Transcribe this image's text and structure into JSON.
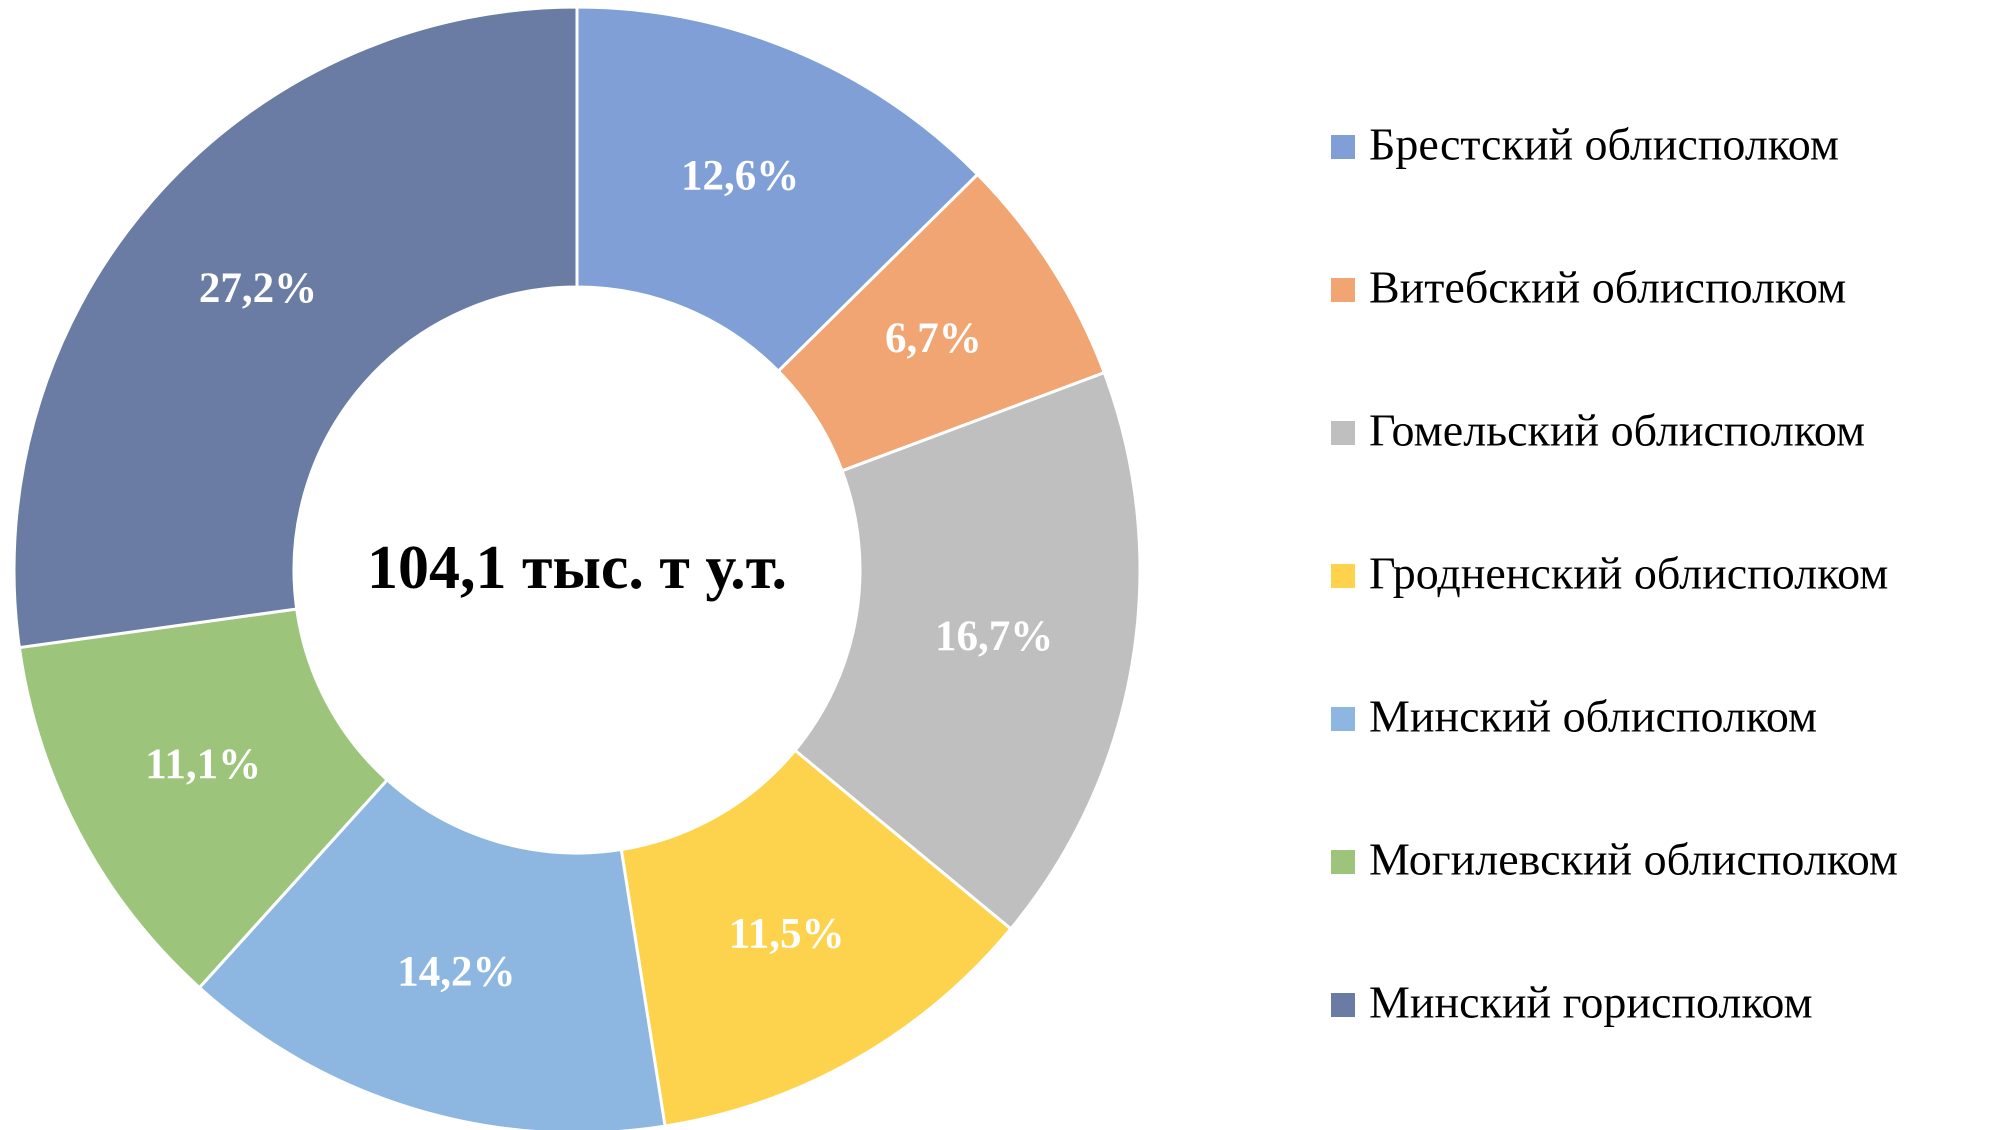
{
  "chart_data": {
    "type": "donut",
    "center_label": "104,1 тыс. т у.т.",
    "categories": [
      "Брестский облисполком",
      "Витебский облисполком",
      "Гомельский облисполком",
      "Гродненский облисполком",
      "Минский облисполком",
      "Могилевский облисполком",
      "Минский горисполком"
    ],
    "values": [
      12.6,
      6.7,
      16.7,
      11.5,
      14.2,
      11.1,
      27.2
    ],
    "value_labels": [
      "12,6%",
      "6,7%",
      "16,7%",
      "11,5%",
      "14,2%",
      "11,1%",
      "27,2%"
    ],
    "colors": [
      "#7f9fd6",
      "#f0a572",
      "#bfbfbf",
      "#fdd34e",
      "#8db7e0",
      "#9dc47b",
      "#6a7ca3"
    ],
    "legend": "right"
  }
}
